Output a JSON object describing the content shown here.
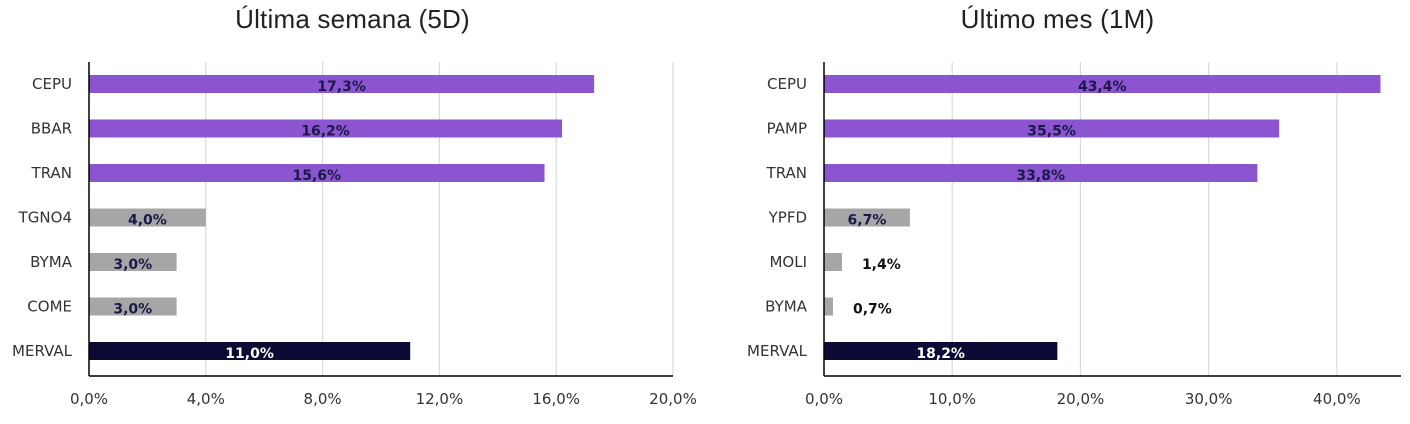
{
  "chart_data": [
    {
      "type": "bar",
      "orientation": "horizontal",
      "title": "Última semana (5D)",
      "categories": [
        "CEPU",
        "BBAR",
        "TRAN",
        "TGNO4",
        "BYMA",
        "COME",
        "MERVAL"
      ],
      "values": [
        17.3,
        16.2,
        15.6,
        4.0,
        3.0,
        3.0,
        11.0
      ],
      "data_labels": [
        "17,3%",
        "16,2%",
        "15,6%",
        "4,0%",
        "3,0%",
        "3,0%",
        "11,0%"
      ],
      "bar_colors": [
        "#8b55cf",
        "#8b55cf",
        "#8b55cf",
        "#a6a6a6",
        "#a6a6a6",
        "#a6a6a6",
        "#0d0a35"
      ],
      "label_colors": [
        "#1a1a4a",
        "#1a1a4a",
        "#1a1a4a",
        "#1a1a4a",
        "#1a1a4a",
        "#1a1a4a",
        "#ffffff"
      ],
      "xlim": [
        0,
        20
      ],
      "xticks": [
        0,
        4,
        8,
        12,
        16,
        20
      ],
      "xtick_labels": [
        "0,0%",
        "4,0%",
        "8,0%",
        "12,0%",
        "16,0%",
        "20,0%"
      ],
      "grid": "vertical",
      "legend": "none"
    },
    {
      "type": "bar",
      "orientation": "horizontal",
      "title": "Último mes (1M)",
      "categories": [
        "CEPU",
        "PAMP",
        "TRAN",
        "YPFD",
        "MOLI",
        "BYMA",
        "MERVAL"
      ],
      "values": [
        43.4,
        35.5,
        33.8,
        6.7,
        1.4,
        0.7,
        18.2
      ],
      "data_labels": [
        "43,4%",
        "35,5%",
        "33,8%",
        "6,7%",
        "1,4%",
        "0,7%",
        "18,2%"
      ],
      "bar_colors": [
        "#8b55cf",
        "#8b55cf",
        "#8b55cf",
        "#a6a6a6",
        "#a6a6a6",
        "#a6a6a6",
        "#0d0a35"
      ],
      "label_colors": [
        "#1a1a4a",
        "#1a1a4a",
        "#1a1a4a",
        "#1a1a4a",
        "#1a1a4a",
        "#1a1a4a",
        "#ffffff"
      ],
      "xlim": [
        0,
        45
      ],
      "xticks": [
        0,
        10,
        20,
        30,
        40
      ],
      "xtick_labels": [
        "0,0%",
        "10,0%",
        "20,0%",
        "30,0%",
        "40,0%"
      ],
      "grid": "vertical",
      "legend": "none"
    }
  ]
}
